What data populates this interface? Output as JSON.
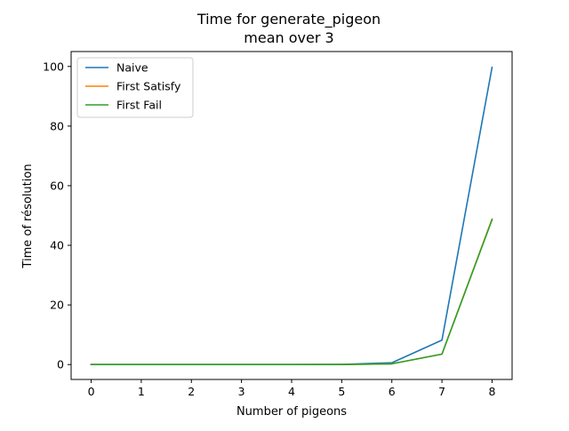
{
  "chart_data": {
    "type": "line",
    "title": "Time for generate_pigeon",
    "subtitle": "mean over 3",
    "xlabel": "Number of pigeons",
    "ylabel": "Time of résolution",
    "x": [
      0,
      1,
      2,
      3,
      4,
      5,
      6,
      7,
      8
    ],
    "xlim": [
      -0.4,
      8.4
    ],
    "ylim": [
      -5,
      105
    ],
    "xticks": [
      0,
      1,
      2,
      3,
      4,
      5,
      6,
      7,
      8
    ],
    "yticks": [
      0,
      20,
      40,
      60,
      80,
      100
    ],
    "grid": false,
    "legend_position": "top-left",
    "series": [
      {
        "name": "Naive",
        "color": "#1f77b4",
        "values": [
          0,
          0,
          0,
          0,
          0,
          0.05,
          0.6,
          8.2,
          99.7
        ]
      },
      {
        "name": "First Satisfy",
        "color": "#ff7f0e",
        "values": [
          0,
          0,
          0,
          0,
          0,
          0.02,
          0.25,
          3.5,
          48.8
        ]
      },
      {
        "name": "First Fail",
        "color": "#2ca02c",
        "values": [
          0,
          0,
          0,
          0,
          0,
          0.02,
          0.25,
          3.5,
          48.6
        ]
      }
    ]
  }
}
